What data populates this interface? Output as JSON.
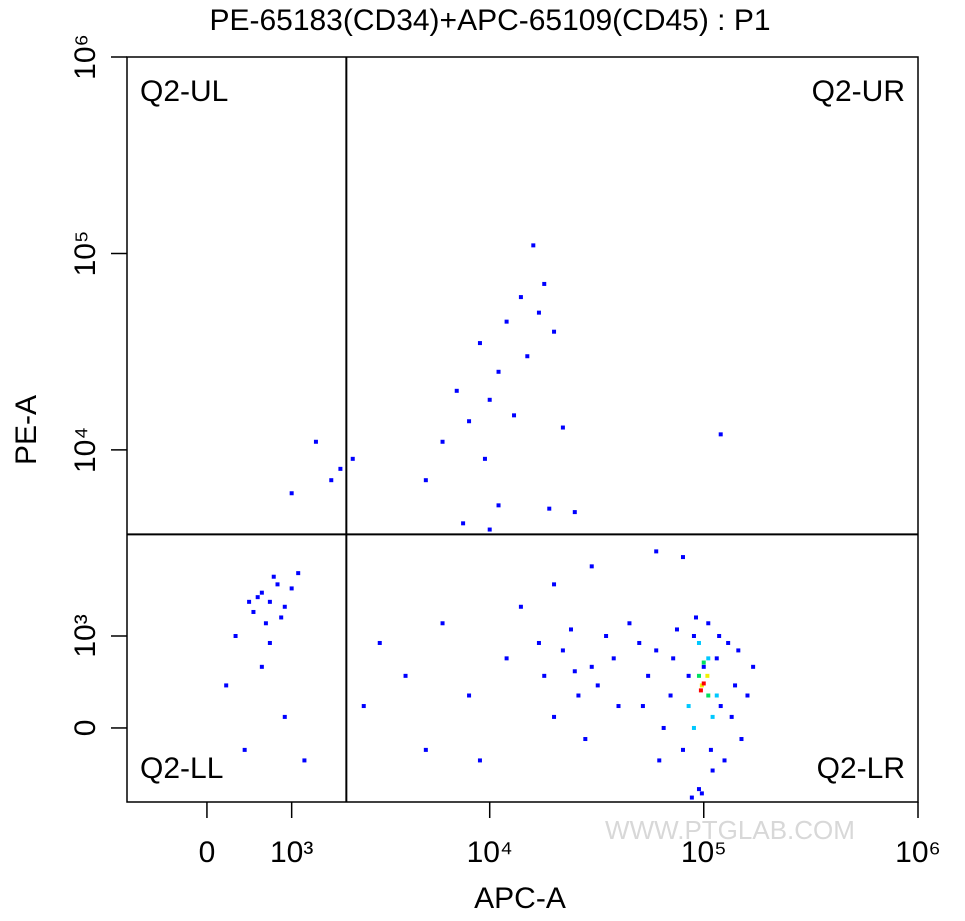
{
  "chart_data": {
    "type": "scatter",
    "title": "PE-65183(CD34)+APC-65109(CD45) : P1",
    "x_label": "APC-A",
    "y_label": "PE-A",
    "xscale": "biexponential",
    "yscale": "biexponential",
    "xlim": [
      -930,
      1000000
    ],
    "ylim": [
      -755,
      1000000
    ],
    "xticks": [
      0,
      {
        "value": 1000,
        "label": "10³"
      },
      {
        "value": 10000,
        "label": "10⁴"
      },
      {
        "value": 100000,
        "label": "10⁵"
      },
      {
        "value": 1000000,
        "label": "10⁶"
      }
    ],
    "yticks": [
      0,
      {
        "value": 1000,
        "label": "10³"
      },
      {
        "value": 10000,
        "label": "10⁴"
      },
      {
        "value": 100000,
        "label": "10⁵"
      },
      {
        "value": 1000000,
        "label": "10⁶"
      }
    ],
    "gates": {
      "x": 2040,
      "y": 3680
    },
    "quadrants": {
      "ul": "Q2-UL",
      "ur": "Q2-UR",
      "ll": "Q2-LL",
      "lr": "Q2-LR"
    },
    "watermark": "WWW.PTGLAB.COM",
    "series": [
      {
        "color": "#0000ff",
        "x": [
          60000,
          70000,
          80000,
          90000,
          100000,
          110000,
          120000,
          130000,
          140000,
          150000,
          65000,
          75000,
          85000,
          95000,
          105000,
          115000,
          125000,
          135000,
          160000,
          55000,
          88000,
          98000,
          170000,
          62000,
          72000,
          118000,
          145000,
          52000,
          92000,
          108000,
          18000,
          22000,
          26000,
          30000,
          35000,
          20000,
          24000,
          28000,
          32000,
          38000,
          17000,
          40000,
          25000,
          45000,
          50000,
          3000,
          4000,
          6000,
          8000,
          9000,
          12000,
          2500,
          5000,
          14000,
          30000,
          60000,
          80000,
          20000,
          500,
          600,
          700,
          800,
          900,
          650,
          750,
          550,
          850,
          1000,
          450,
          700,
          1100,
          300,
          200,
          400,
          900,
          1200,
          600,
          7000,
          8000,
          9000,
          10000,
          11000,
          12000,
          13000,
          14000,
          15000,
          16000,
          17000,
          18000,
          20000,
          22000,
          6000,
          9500,
          5000,
          11000,
          19000,
          25000,
          7500,
          10000,
          120000,
          1400,
          1000,
          1900,
          2200,
          1700
        ],
        "y": [
          800,
          300,
          -200,
          1000,
          600,
          -400,
          200,
          900,
          400,
          -100,
          0,
          1100,
          500,
          -600,
          1200,
          700,
          -300,
          100,
          300,
          500,
          -700,
          -650,
          600,
          -300,
          700,
          1000,
          800,
          200,
          1300,
          -200,
          500,
          800,
          300,
          600,
          1000,
          100,
          1100,
          -100,
          400,
          700,
          900,
          200,
          550,
          1200,
          900,
          900,
          500,
          1200,
          300,
          -300,
          700,
          200,
          -200,
          1500,
          2500,
          3000,
          2800,
          2000,
          1400,
          1800,
          1600,
          2000,
          1500,
          1200,
          2200,
          1700,
          1300,
          1900,
          1600,
          900,
          2300,
          1000,
          400,
          -200,
          100,
          -300,
          600,
          20000,
          14000,
          35000,
          18000,
          25000,
          45000,
          15000,
          60000,
          30000,
          110000,
          50000,
          70000,
          40000,
          13000,
          11000,
          9000,
          7000,
          5200,
          5000,
          4800,
          4200,
          3900,
          12000,
          11000,
          6000,
          8000,
          9000,
          7000
        ]
      },
      {
        "color": "#00c8ff",
        "x": [
          85000,
          105000,
          95000,
          115000,
          90000,
          110000
        ],
        "y": [
          200,
          700,
          900,
          300,
          0,
          100
        ]
      },
      {
        "color": "#00e060",
        "x": [
          95000,
          105000,
          100000
        ],
        "y": [
          500,
          300,
          650
        ]
      },
      {
        "color": "#f0f000",
        "x": [
          98000,
          104000
        ],
        "y": [
          400,
          500
        ]
      },
      {
        "color": "#ff0000",
        "x": [
          100000,
          97000
        ],
        "y": [
          420,
          350
        ]
      }
    ]
  }
}
